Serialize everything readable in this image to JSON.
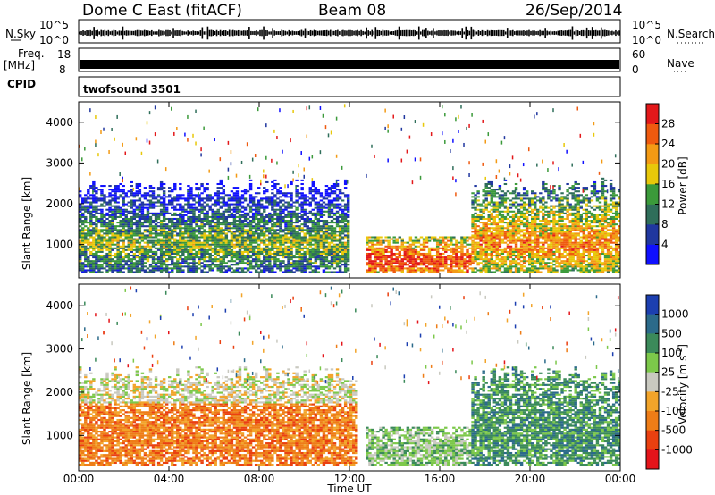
{
  "header": {
    "station": "Dome C East (fitACF)",
    "beam": "Beam 08",
    "date": "26/Sep/2014"
  },
  "strips": {
    "nsky_label": "N.Sky",
    "nsearch_label": "N.Search",
    "noise_ticks": [
      "10^5",
      "10^0"
    ],
    "freq_label": "Freq.",
    "freq_unit": "[MHz]",
    "freq_ticks": [
      "18",
      "8"
    ],
    "nave_label": "Nave",
    "nave_ticks": [
      "60",
      "0"
    ],
    "cpid_label": "CPID",
    "cpid_value": "twofsound 3501"
  },
  "colors": {
    "power": [
      "#1010ff",
      "#20379f",
      "#2f6e5a",
      "#3b9a3a",
      "#e8c80a",
      "#f39a14",
      "#ef5a0f",
      "#e3181a"
    ],
    "velocity": [
      "#1c3fb0",
      "#2b6a8a",
      "#3b8a5a",
      "#7cc84a",
      "#c9c9c0",
      "#f2a42a",
      "#ee7d17",
      "#ea4010",
      "#e4141a"
    ]
  },
  "chart_data": [
    {
      "type": "heatmap",
      "title": "Power",
      "ylabel": "Slant Range [km]",
      "xlabel": "Time UT",
      "x_ticks": [
        "00:00",
        "04:00",
        "08:00",
        "12:00",
        "16:00",
        "20:00",
        "00:00"
      ],
      "xlim": [
        0,
        24
      ],
      "y_ticks": [
        1000,
        2000,
        3000,
        4000
      ],
      "ylim": [
        180,
        4500
      ],
      "colorbar": {
        "label": "Power [dB]",
        "ticks": [
          4,
          8,
          12,
          16,
          20,
          24,
          28
        ],
        "range": [
          0,
          32
        ]
      },
      "description_bands": [
        {
          "t0": 0,
          "t1": 12,
          "range_center": 1000,
          "value": 14
        },
        {
          "t0": 12.7,
          "t1": 17.4,
          "range_center": 600,
          "value": 28
        },
        {
          "t0": 17.4,
          "t1": 24,
          "range_center": 1000,
          "value": 22
        }
      ]
    },
    {
      "type": "heatmap",
      "title": "Velocity",
      "ylabel": "Slant Range [km]",
      "xlabel": "Time UT",
      "x_ticks": [
        "00:00",
        "04:00",
        "08:00",
        "12:00",
        "16:00",
        "20:00",
        "00:00"
      ],
      "xlim": [
        0,
        24
      ],
      "y_ticks": [
        1000,
        2000,
        3000,
        4000
      ],
      "ylim": [
        180,
        4500
      ],
      "colorbar": {
        "label": "Velocity [m s-1]",
        "ticks": [
          1000,
          500,
          100,
          25,
          -25,
          -100,
          -500,
          -1000
        ],
        "range": [
          -1500,
          1500
        ]
      },
      "description_bands": [
        {
          "t0": 0,
          "t1": 12.5,
          "range_center": 1000,
          "value": -200
        },
        {
          "t0": 12.7,
          "t1": 17.4,
          "range_center": 600,
          "value": 50
        },
        {
          "t0": 17.4,
          "t1": 24,
          "range_center": 1000,
          "value": 300
        }
      ]
    }
  ],
  "axis_labels": {
    "x": "Time UT",
    "y_top": "Slant Range [km]",
    "y_bottom": "Slant Range [km]",
    "power_cbar": "Power [dB]",
    "velocity_cbar": "Velocity",
    "velocity_unit": "[m s",
    "velocity_exp": "-1",
    "velocity_close": "]"
  }
}
